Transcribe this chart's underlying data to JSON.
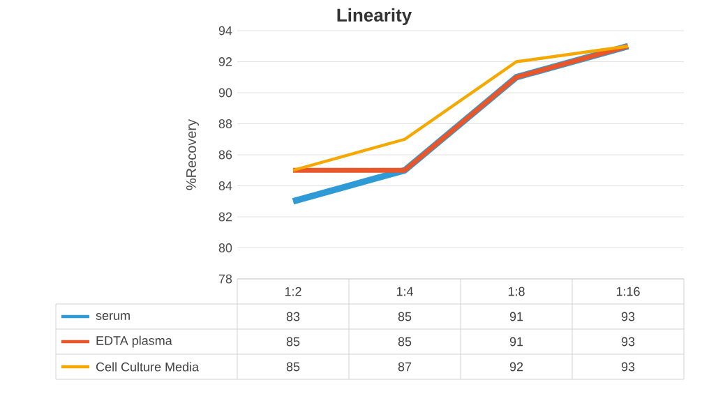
{
  "chart_data": {
    "type": "line",
    "title": "Linearity",
    "ylabel": "%Recovery",
    "categories": [
      "1:2",
      "1:4",
      "1:8",
      "1:16"
    ],
    "series": [
      {
        "name": "serum",
        "color": "#2e9bd6",
        "values": [
          83,
          85,
          91,
          93
        ]
      },
      {
        "name": "EDTA plasma",
        "color": "#e8562a",
        "values": [
          85,
          85,
          91,
          93
        ]
      },
      {
        "name": "Cell Culture Media",
        "color": "#f5a800",
        "values": [
          85,
          87,
          92,
          93
        ]
      }
    ],
    "ylim": [
      78,
      94
    ],
    "yticks": [
      78,
      80,
      82,
      84,
      86,
      88,
      90,
      92,
      94
    ],
    "grid": "y",
    "legend": "bottom left",
    "data_labels": true,
    "marker": "none",
    "line_style": "solid"
  }
}
